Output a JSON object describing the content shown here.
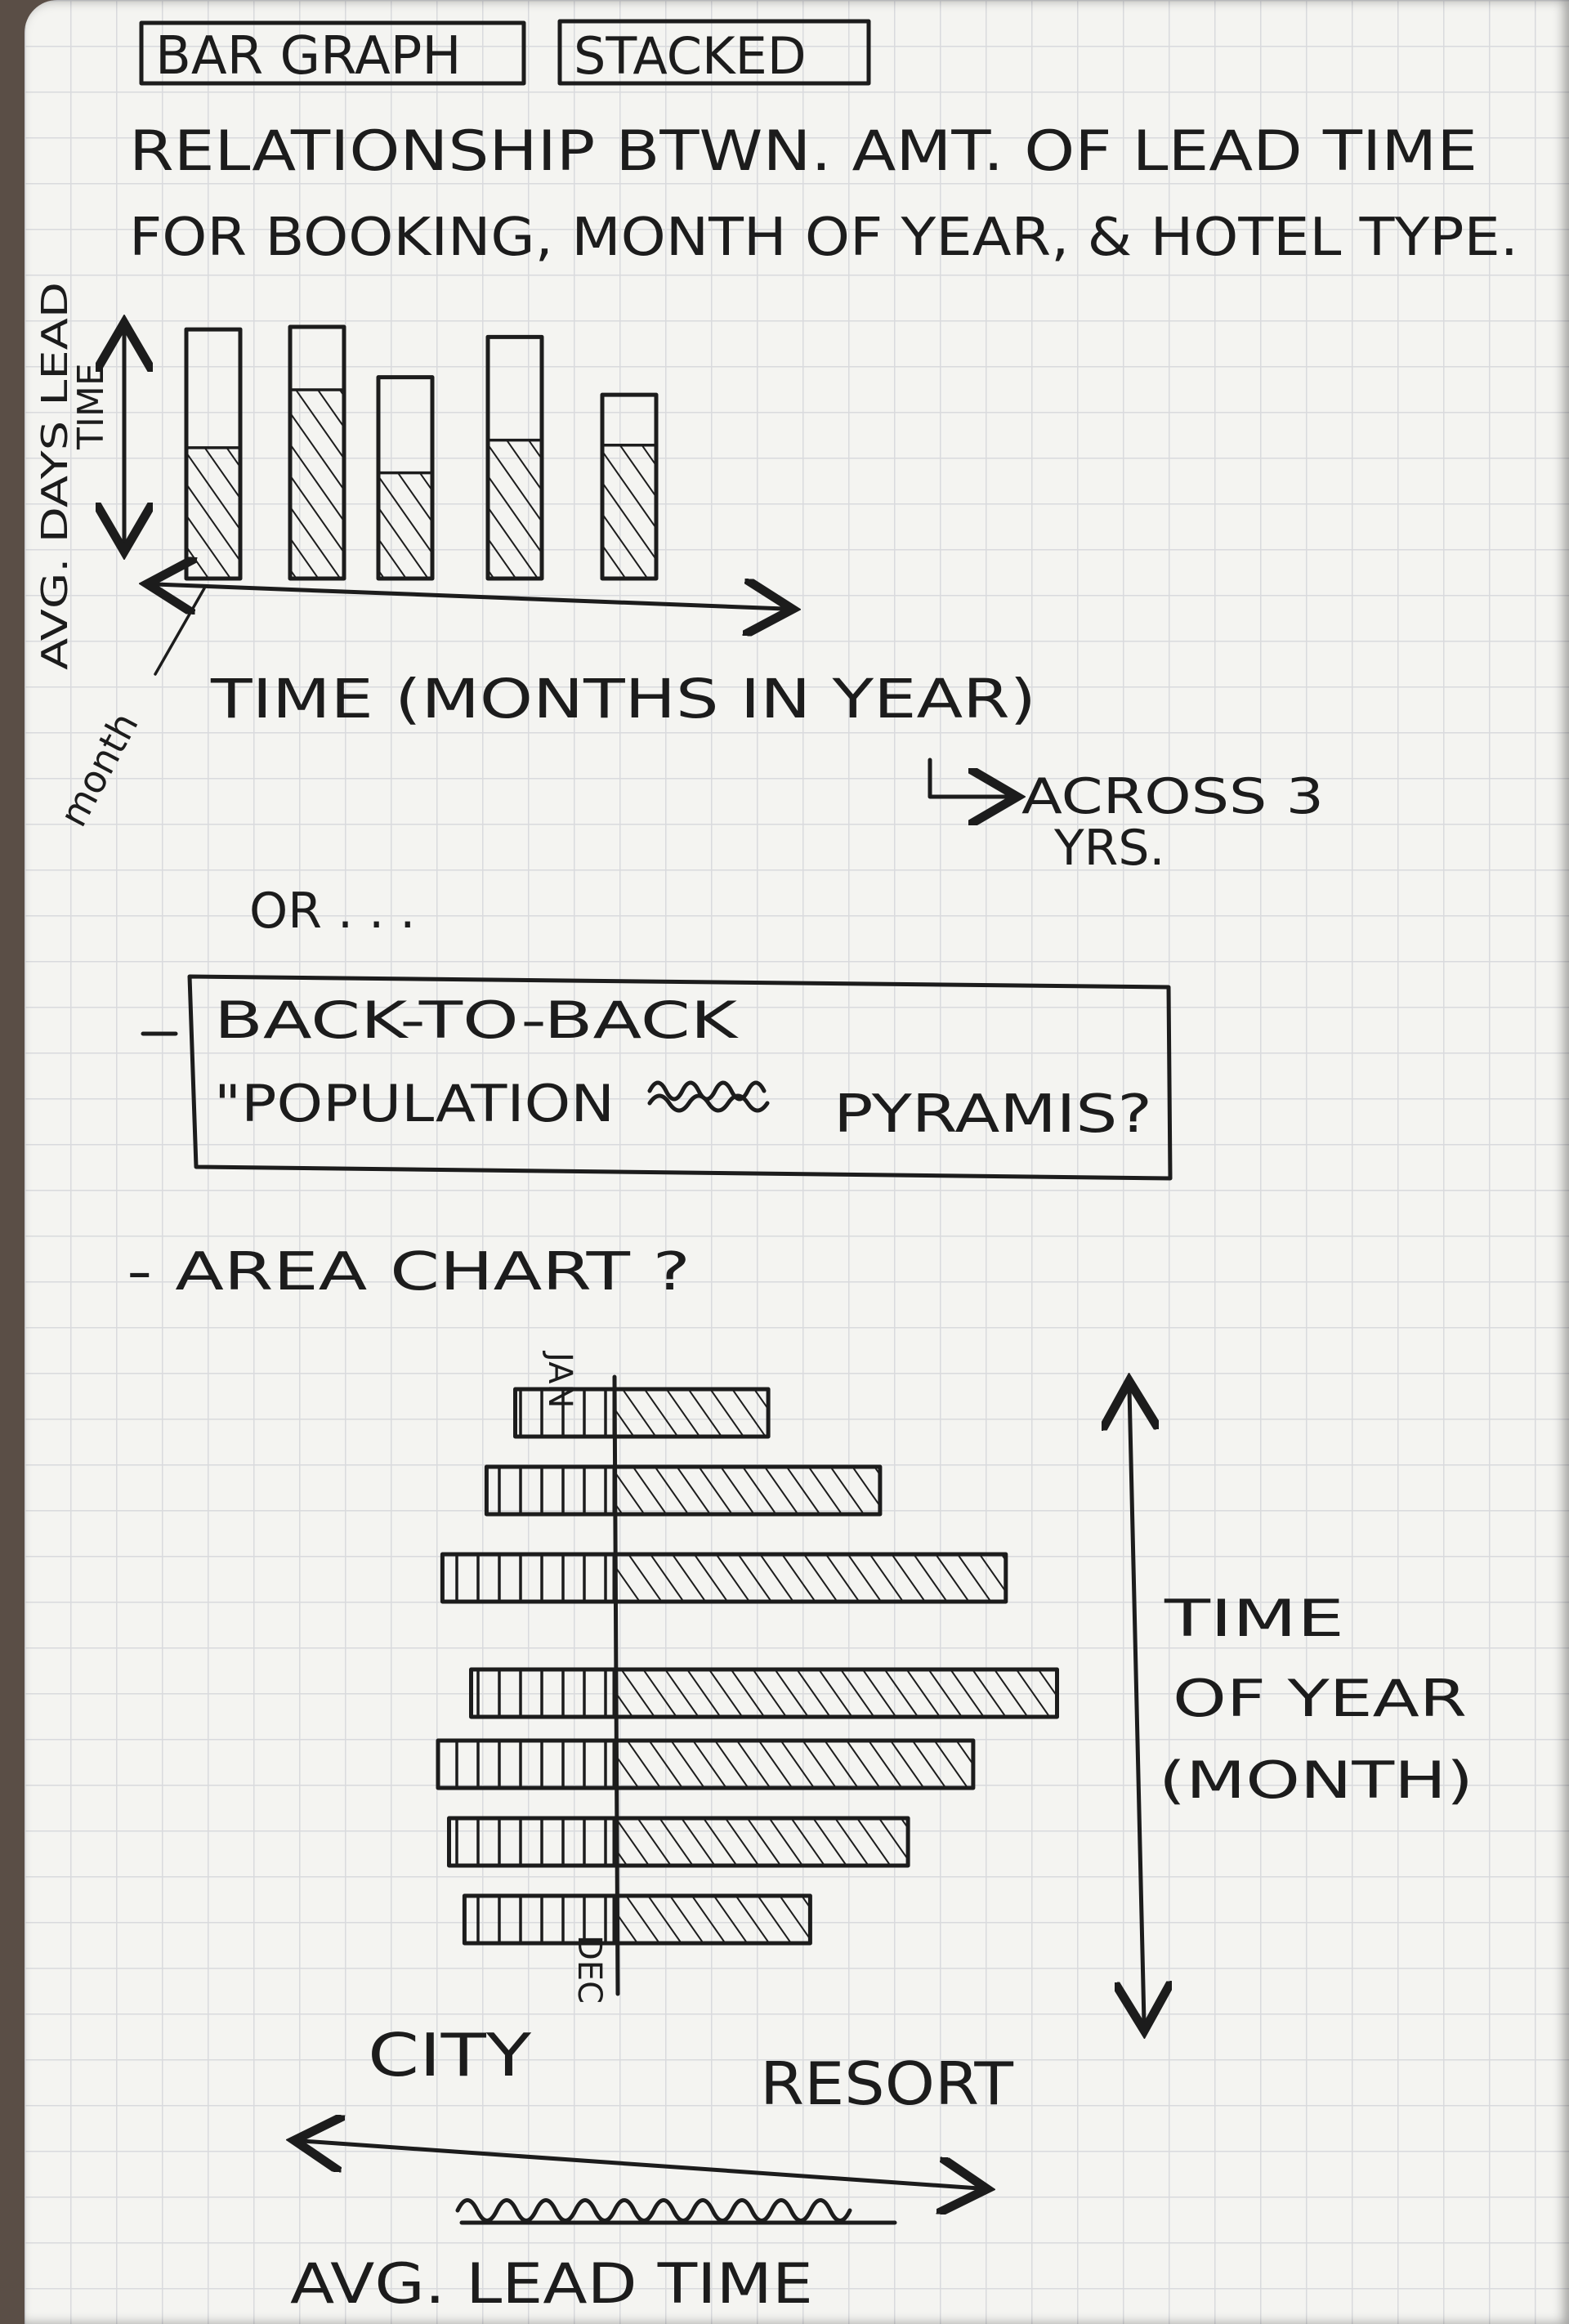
{
  "header": {
    "tag_bar_graph": "BAR GRAPH",
    "tag_stacked": "STACKED",
    "description_line1": "RELATIONSHIP BTWN. AMT. OF LEAD TIME",
    "description_line2": "FOR BOOKING, MONTH OF YEAR, & HOTEL TYPE."
  },
  "sketch1": {
    "y_axis_label_line1": "AVG. DAYS LEAD",
    "y_axis_label_line2": "TIME",
    "month_label": "month",
    "x_axis_label": "TIME (MONTHS IN YEAR)",
    "note_line1": "ACROSS 3",
    "note_line2": "YRS.",
    "bars": [
      {
        "total": 0.99,
        "lower": 0.52
      },
      {
        "total": 1.0,
        "lower": 0.75
      },
      {
        "total": 0.8,
        "lower": 0.42
      },
      {
        "total": 0.96,
        "lower": 0.55
      },
      {
        "total": 0.73,
        "lower": 0.53
      }
    ]
  },
  "alternatives": {
    "or_text": "OR . . .",
    "option1_line1": "BACK-TO-BACK",
    "option1_line2": "\"POPULATION",
    "option1_line3": "PYRAMIS?",
    "option2": "- AREA CHART ?"
  },
  "sketch2": {
    "month_top": "JAN",
    "month_bottom": "DEC",
    "left_label": "CITY",
    "right_label": "RESORT",
    "axis_label": "AVG. LEAD TIME",
    "right_note_line1": "TIME",
    "right_note_line2": "OF YEAR",
    "right_note_line3": "(MONTH)",
    "city_bars": [
      0.45,
      0.58,
      0.78,
      0.65,
      0.8,
      0.75,
      0.68
    ],
    "resort_bars": [
      0.33,
      0.57,
      0.84,
      0.95,
      0.77,
      0.63,
      0.42
    ]
  }
}
